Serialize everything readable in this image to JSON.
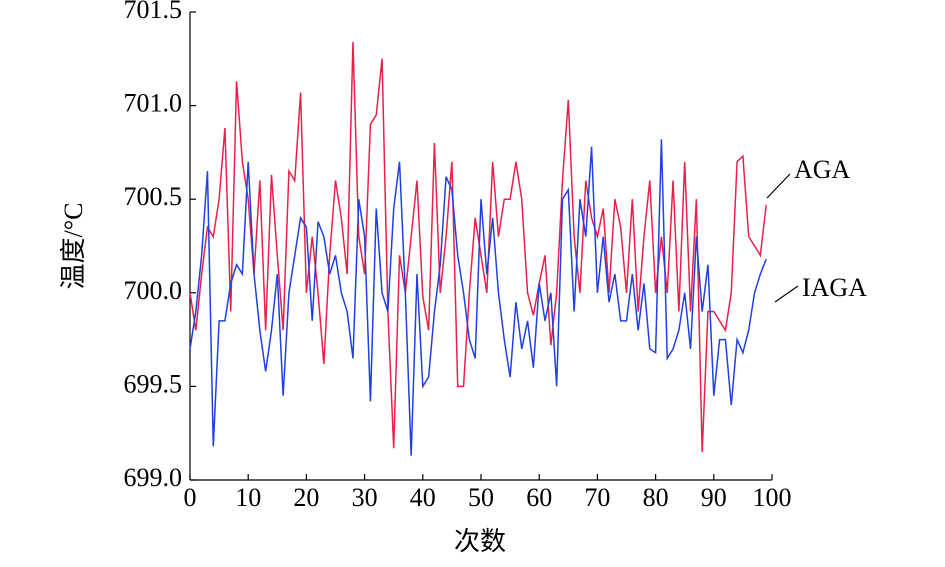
{
  "chart_data": {
    "type": "line",
    "x_label": "次数",
    "y_label": "温度/°C",
    "x": [
      0,
      1,
      2,
      3,
      4,
      5,
      6,
      7,
      8,
      9,
      10,
      11,
      12,
      13,
      14,
      15,
      16,
      17,
      18,
      19,
      20,
      21,
      22,
      23,
      24,
      25,
      26,
      27,
      28,
      29,
      30,
      31,
      32,
      33,
      34,
      35,
      36,
      37,
      38,
      39,
      40,
      41,
      42,
      43,
      44,
      45,
      46,
      47,
      48,
      49,
      50,
      51,
      52,
      53,
      54,
      55,
      56,
      57,
      58,
      59,
      60,
      61,
      62,
      63,
      64,
      65,
      66,
      67,
      68,
      69,
      70,
      71,
      72,
      73,
      74,
      75,
      76,
      77,
      78,
      79,
      80,
      81,
      82,
      83,
      84,
      85,
      86,
      87,
      88,
      89,
      90,
      91,
      92,
      93,
      94,
      95,
      96,
      97,
      98,
      99
    ],
    "series": [
      {
        "name": "AGA",
        "color": "#e8204a",
        "values": [
          700.0,
          699.8,
          700.1,
          700.35,
          700.3,
          700.5,
          700.88,
          699.9,
          701.13,
          700.7,
          700.5,
          700.1,
          700.6,
          699.8,
          700.63,
          700.2,
          699.8,
          700.65,
          700.6,
          701.07,
          700.0,
          700.3,
          700.0,
          699.62,
          700.2,
          700.6,
          700.4,
          700.1,
          701.34,
          700.3,
          700.1,
          700.9,
          700.95,
          701.25,
          699.9,
          699.17,
          700.2,
          700.0,
          700.3,
          700.6,
          699.98,
          699.8,
          700.8,
          700.0,
          700.3,
          700.7,
          699.5,
          699.5,
          700.0,
          700.4,
          700.2,
          700.0,
          700.7,
          700.3,
          700.5,
          700.5,
          700.7,
          700.5,
          700.0,
          699.88,
          700.05,
          700.2,
          699.72,
          700.0,
          700.6,
          701.03,
          700.3,
          700.0,
          700.6,
          700.4,
          700.3,
          700.45,
          700.0,
          700.5,
          700.35,
          700.0,
          700.5,
          699.9,
          700.3,
          700.6,
          700.0,
          700.3,
          700.0,
          700.6,
          699.9,
          700.7,
          699.9,
          700.5,
          699.15,
          699.9,
          699.9,
          699.85,
          699.8,
          700.0,
          700.7,
          700.73,
          700.3,
          700.25,
          700.2,
          700.47
        ]
      },
      {
        "name": "IAGA",
        "color": "#2040e0",
        "values": [
          699.7,
          699.9,
          700.2,
          700.65,
          699.18,
          699.85,
          699.85,
          700.05,
          700.15,
          700.1,
          700.7,
          700.1,
          699.8,
          699.58,
          699.8,
          700.1,
          699.45,
          700.0,
          700.2,
          700.4,
          700.35,
          699.85,
          700.38,
          700.3,
          700.1,
          700.2,
          700.0,
          699.9,
          699.65,
          700.5,
          700.3,
          699.42,
          700.45,
          700.0,
          699.9,
          700.45,
          700.7,
          700.0,
          699.13,
          700.1,
          699.5,
          699.55,
          699.9,
          700.15,
          700.62,
          700.55,
          700.2,
          700.0,
          699.75,
          699.65,
          700.5,
          700.1,
          700.4,
          700.0,
          699.75,
          699.55,
          699.95,
          699.7,
          699.85,
          699.6,
          700.05,
          699.85,
          700.0,
          699.5,
          700.5,
          700.55,
          699.9,
          700.5,
          700.3,
          700.78,
          700.0,
          700.3,
          699.95,
          700.1,
          699.85,
          699.85,
          700.1,
          699.8,
          700.05,
          699.7,
          699.68,
          700.82,
          699.65,
          699.7,
          699.8,
          700.0,
          699.7,
          700.3,
          699.9,
          700.15,
          699.45,
          699.75,
          699.75,
          699.4,
          699.75,
          699.68,
          699.8,
          700.0,
          700.1,
          700.18
        ]
      }
    ],
    "xlim": [
      0,
      100
    ],
    "xticks": [
      0,
      10,
      20,
      30,
      40,
      50,
      60,
      70,
      80,
      90,
      100
    ],
    "ylim": [
      699,
      701.5
    ],
    "yticks": [
      {
        "value": 699,
        "label": "699.0"
      },
      699.5,
      {
        "value": 700,
        "label": "700.0"
      },
      700.5,
      {
        "value": 701,
        "label": "701.0"
      },
      701.5
    ]
  }
}
